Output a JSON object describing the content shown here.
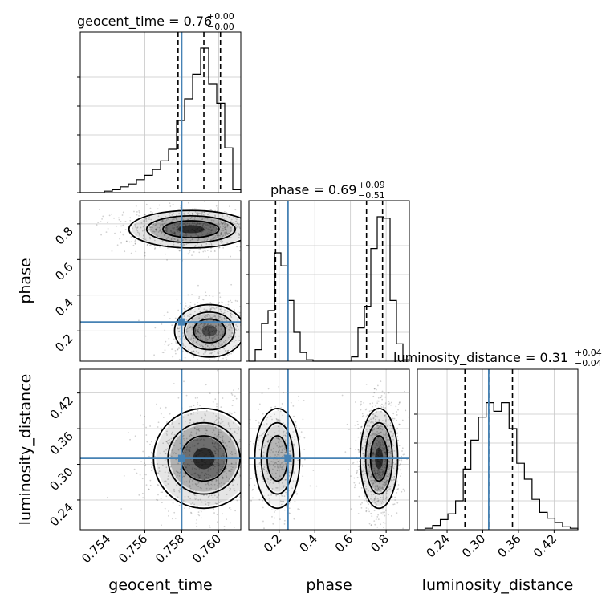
{
  "chart_data": {
    "type": "corner",
    "colors": {
      "truth": "#4682b4",
      "hist": "#000000",
      "quantile": "#000000",
      "grid": "#c8c8c8"
    },
    "parameters": [
      {
        "key": "geocent_time",
        "label": "geocent_time",
        "truth": 0.758,
        "title": {
          "text": "geocent_time = 0.76",
          "sup": "+0.00",
          "sub": "−0.00"
        },
        "range": [
          0.7525,
          0.7612
        ],
        "ticks": [
          0.754,
          0.756,
          0.758,
          0.76
        ],
        "tick_labels": [
          "0.754",
          "0.756",
          "0.758",
          "0.760"
        ],
        "quantiles": [
          0.7578,
          0.7592,
          0.7601
        ]
      },
      {
        "key": "phase",
        "label": "phase",
        "truth": 0.25,
        "title": {
          "text": "phase = 0.69",
          "sup": "+0.09",
          "sub": "−0.51"
        },
        "range": [
          0.03,
          0.93
        ],
        "ticks": [
          0.2,
          0.4,
          0.6,
          0.8
        ],
        "tick_labels": [
          "0.2",
          "0.4",
          "0.6",
          "0.8"
        ],
        "quantiles": [
          0.18,
          0.69,
          0.78
        ]
      },
      {
        "key": "luminosity_distance",
        "label": "luminosity_distance",
        "truth": 0.31,
        "title": {
          "text": "luminosity_distance = 0.31",
          "sup": "+0.04",
          "sub": "−0.04"
        },
        "range": [
          0.19,
          0.46
        ],
        "ticks": [
          0.24,
          0.3,
          0.36,
          0.42
        ],
        "tick_labels": [
          "0.24",
          "0.30",
          "0.36",
          "0.42"
        ],
        "quantiles": [
          0.27,
          0.31,
          0.35
        ]
      }
    ],
    "histograms": {
      "geocent_time": [
        0,
        0,
        0,
        0.01,
        0.02,
        0.04,
        0.06,
        0.09,
        0.12,
        0.16,
        0.22,
        0.3,
        0.5,
        0.65,
        0.82,
        1.0,
        0.75,
        0.62,
        0.31,
        0.02
      ],
      "phase": [
        0,
        0.08,
        0.26,
        0.35,
        0.75,
        0.66,
        0.42,
        0.2,
        0.06,
        0.01,
        0,
        0,
        0,
        0,
        0,
        0,
        0.03,
        0.23,
        0.38,
        0.78,
        1.0,
        0.99,
        0.42,
        0.12,
        0.01
      ],
      "luminosity_distance": [
        0,
        0.01,
        0.03,
        0.07,
        0.11,
        0.2,
        0.42,
        0.62,
        0.78,
        0.88,
        0.82,
        0.88,
        0.7,
        0.46,
        0.35,
        0.21,
        0.12,
        0.08,
        0.05,
        0.02,
        0.01
      ]
    },
    "panels_2d": [
      {
        "x": "geocent_time",
        "y": "phase",
        "modes": [
          {
            "cx": 0.7585,
            "cy": 0.77,
            "sx": 0.0016,
            "sy": 0.05,
            "w": 1.0
          },
          {
            "cx": 0.7595,
            "cy": 0.2,
            "sx": 0.0009,
            "sy": 0.07,
            "w": 0.75
          }
        ]
      },
      {
        "x": "geocent_time",
        "y": "luminosity_distance",
        "modes": [
          {
            "cx": 0.7592,
            "cy": 0.31,
            "sx": 0.0013,
            "sy": 0.04,
            "w": 1.0
          }
        ]
      },
      {
        "x": "phase",
        "y": "luminosity_distance",
        "modes": [
          {
            "cx": 0.19,
            "cy": 0.31,
            "sx": 0.06,
            "sy": 0.04,
            "w": 0.45
          },
          {
            "cx": 0.76,
            "cy": 0.31,
            "sx": 0.05,
            "sy": 0.04,
            "w": 1.0
          }
        ]
      }
    ]
  }
}
